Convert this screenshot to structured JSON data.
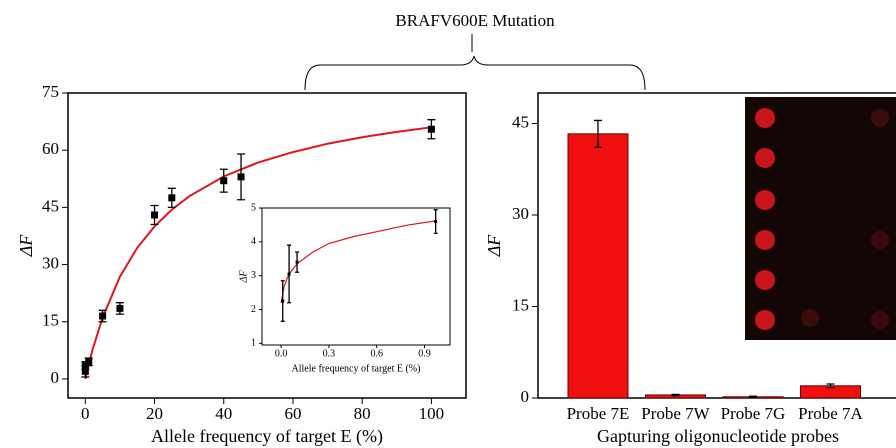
{
  "figure_title": "BRAFV600E Mutation",
  "chart_data": [
    {
      "type": "scatter",
      "xlabel": "Allele frequency of target E (%)",
      "ylabel": "ΔF",
      "xlim": [
        -5,
        110
      ],
      "ylim": [
        -5,
        75
      ],
      "xticks": [
        0,
        20,
        40,
        60,
        80,
        100
      ],
      "yticks": [
        0,
        15,
        30,
        45,
        60,
        75
      ],
      "series": [
        {
          "color": "#000000",
          "x": [
            0,
            0,
            1,
            5,
            10,
            20,
            25,
            40,
            45,
            100
          ],
          "values": [
            2,
            3.5,
            4.5,
            16.5,
            18.5,
            43,
            47.5,
            52,
            53,
            65.5
          ],
          "errors": [
            1.5,
            1,
            1,
            1.5,
            1.5,
            2.5,
            2.5,
            3,
            6,
            2.5
          ]
        }
      ],
      "fit": {
        "color": "#e0161b",
        "x": [
          0,
          2,
          5,
          10,
          15,
          20,
          25,
          30,
          40,
          50,
          60,
          70,
          80,
          90,
          100
        ],
        "values": [
          0,
          7.4,
          16.1,
          26.8,
          34.4,
          40,
          44.4,
          47.9,
          53.1,
          56.8,
          59.5,
          61.7,
          63.4,
          64.8,
          66
        ]
      }
    },
    {
      "type": "scatter",
      "xlabel": "Allele frequency of target E (%)",
      "ylabel": "ΔF",
      "xlim": [
        -0.12,
        1.06
      ],
      "ylim": [
        0.95,
        5
      ],
      "xticks": [
        {
          "value": 0,
          "label": "0.0"
        },
        {
          "value": 0.3,
          "label": "0.3"
        },
        {
          "value": 0.6,
          "label": "0.6"
        },
        {
          "value": 0.9,
          "label": "0.9"
        }
      ],
      "yticks": [
        1,
        2,
        3,
        4,
        5
      ],
      "series": [
        {
          "color": "#000000",
          "x": [
            0.01,
            0.05,
            0.1,
            0.97
          ],
          "values": [
            2.25,
            3.05,
            3.4,
            4.6
          ],
          "errors": [
            0.6,
            0.85,
            0.3,
            0.35
          ]
        }
      ],
      "fit": {
        "color": "#e0161b",
        "x": [
          0,
          0.02,
          0.05,
          0.1,
          0.2,
          0.3,
          0.45,
          0.6,
          0.8,
          0.97
        ],
        "values": [
          2.2,
          2.7,
          3.05,
          3.35,
          3.7,
          3.95,
          4.15,
          4.3,
          4.5,
          4.62
        ]
      }
    },
    {
      "type": "bar",
      "xlabel": "Gapturing oligonucleotide probes",
      "ylabel": "ΔF",
      "ylim": [
        0,
        50
      ],
      "yticks": [
        0,
        15,
        30,
        45
      ],
      "color": "#f01010",
      "categories": [
        "Probe 7E",
        "Probe 7W",
        "Probe 7G",
        "Probe 7A"
      ],
      "values": [
        43.3,
        0.5,
        0.2,
        2.0
      ],
      "errors": [
        2.2,
        0.1,
        0.1,
        0.3
      ]
    }
  ]
}
